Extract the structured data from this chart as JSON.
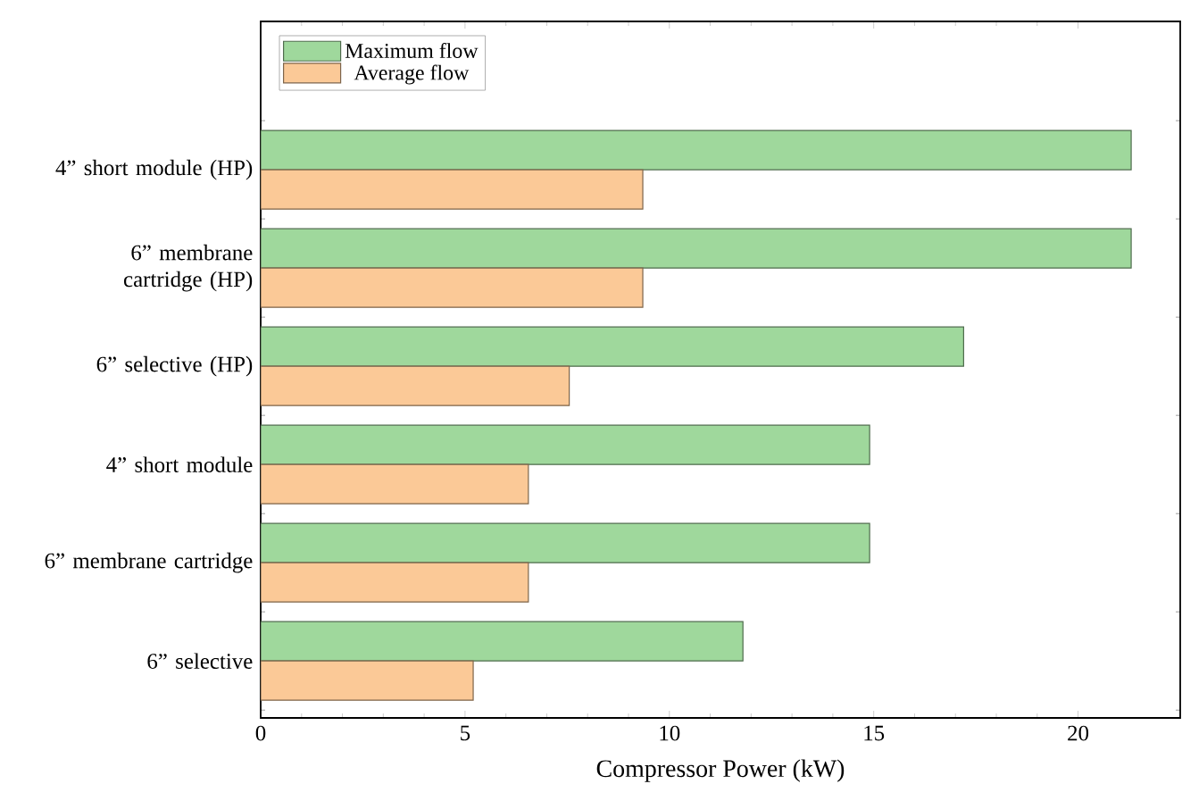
{
  "chart_data": {
    "type": "bar",
    "orientation": "horizontal",
    "xlabel": "Compressor Power (kW)",
    "categories": [
      "4” short module (HP)",
      "6” membrane cartridge (HP)",
      "6” selective (HP)",
      "4” short module",
      "6” membrane cartridge",
      "6” selective"
    ],
    "series": [
      {
        "name": "Maximum flow",
        "color": "#9fd89c",
        "values": [
          21.3,
          21.3,
          17.2,
          14.9,
          14.9,
          11.8
        ]
      },
      {
        "name": "Average flow",
        "color": "#fbc997",
        "values": [
          9.35,
          9.35,
          7.55,
          6.55,
          6.55,
          5.2
        ]
      }
    ],
    "xlim": [
      0,
      22.5
    ],
    "xticks": [
      0,
      5,
      10,
      15,
      20
    ],
    "legend": "top left",
    "grid": false
  }
}
